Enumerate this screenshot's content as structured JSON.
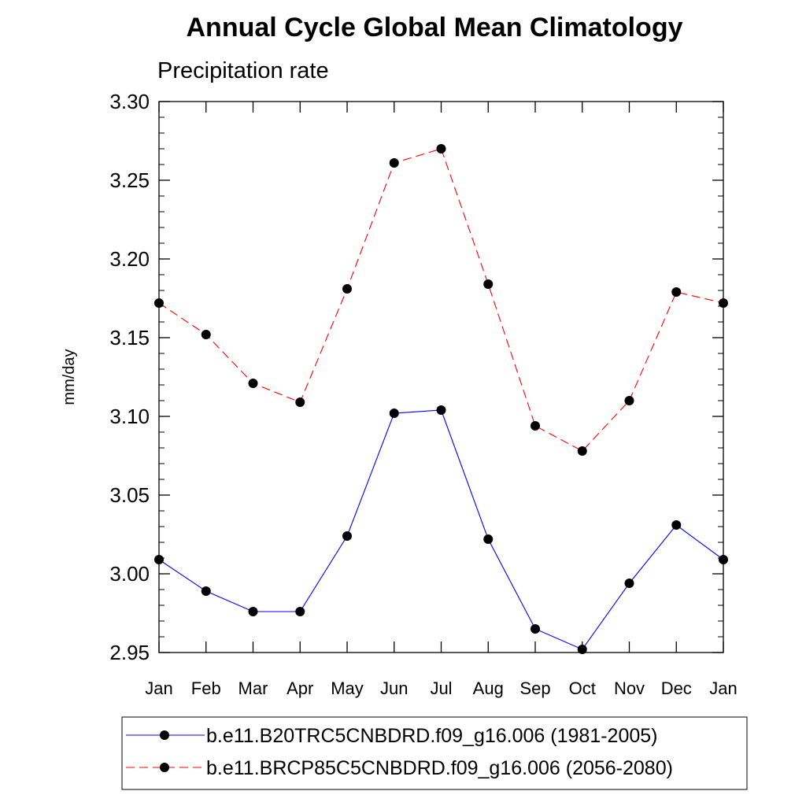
{
  "chart_data": {
    "type": "line",
    "title": "Annual Cycle Global Mean Climatology",
    "subtitle": "Precipitation rate",
    "xlabel": "",
    "ylabel": "mm/day",
    "categories": [
      "Jan",
      "Feb",
      "Mar",
      "Apr",
      "May",
      "Jun",
      "Jul",
      "Aug",
      "Sep",
      "Oct",
      "Nov",
      "Dec",
      "Jan"
    ],
    "ylim": [
      2.95,
      3.3
    ],
    "yticks": [
      "2.95",
      "3.00",
      "3.05",
      "3.10",
      "3.15",
      "3.20",
      "3.25",
      "3.30"
    ],
    "ytick_values": [
      2.95,
      3.0,
      3.05,
      3.1,
      3.15,
      3.2,
      3.25,
      3.3
    ],
    "grid": false,
    "legend_position": "bottom",
    "series": [
      {
        "name": "b.e11.B20TRC5CNBDRD.f09_g16.006 (1981-2005)",
        "color": "#0000ff",
        "line_style": "solid",
        "marker": "filled-circle",
        "values": [
          3.009,
          2.989,
          2.976,
          2.976,
          3.024,
          3.102,
          3.104,
          3.022,
          2.965,
          2.952,
          2.994,
          3.031,
          3.009
        ]
      },
      {
        "name": "b.e11.BRCP85C5CNBDRD.f09_g16.006 (2056-2080)",
        "color": "#ff0000",
        "line_style": "dashed",
        "marker": "filled-circle",
        "values": [
          3.172,
          3.152,
          3.121,
          3.109,
          3.181,
          3.261,
          3.27,
          3.184,
          3.094,
          3.078,
          3.11,
          3.179,
          3.172
        ]
      }
    ]
  }
}
